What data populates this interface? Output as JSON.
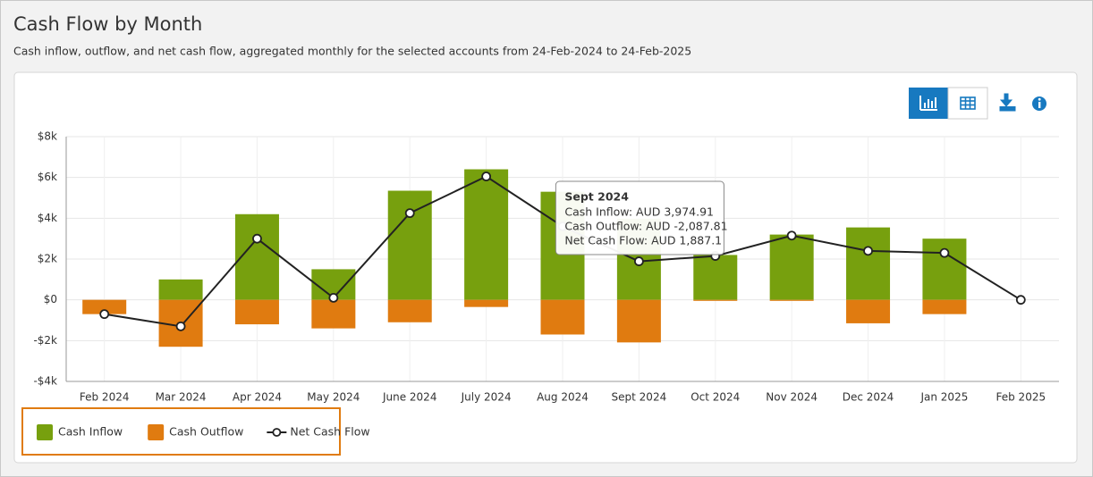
{
  "chart_data": {
    "type": "bar",
    "title": "Cash Flow by Month",
    "subtitle": "Cash inflow, outflow, and net cash flow, aggregated monthly for the selected accounts from 24-Feb-2024 to 24-Feb-2025",
    "categories": [
      "Feb 2024",
      "Mar 2024",
      "Apr 2024",
      "May 2024",
      "June 2024",
      "July 2024",
      "Aug 2024",
      "Sept 2024",
      "Oct 2024",
      "Nov 2024",
      "Dec 2024",
      "Jan 2025",
      "Feb 2025"
    ],
    "series": [
      {
        "name": "Cash Inflow",
        "type": "bar",
        "color": "#77a00e",
        "values": [
          0,
          1000,
          4200,
          1500,
          5350,
          6400,
          5300,
          3974.91,
          2200,
          3200,
          3550,
          3000,
          0
        ]
      },
      {
        "name": "Cash Outflow",
        "type": "bar",
        "color": "#e07b10",
        "values": [
          -700,
          -2300,
          -1200,
          -1400,
          -1100,
          -350,
          -1700,
          -2087.81,
          -50,
          -50,
          -1150,
          -700,
          0
        ]
      },
      {
        "name": "Net Cash Flow",
        "type": "line",
        "color": "#222222",
        "values": [
          -700,
          -1300,
          3000,
          100,
          4250,
          6050,
          3600,
          1887.1,
          2150,
          3150,
          2400,
          2300,
          0
        ]
      }
    ],
    "ylim": [
      -4000,
      8000
    ],
    "yticks": [
      {
        "value": -4000,
        "label": "-$4k"
      },
      {
        "value": -2000,
        "label": "-$2k"
      },
      {
        "value": 0,
        "label": "$0"
      },
      {
        "value": 2000,
        "label": "$2k"
      },
      {
        "value": 4000,
        "label": "$4k"
      },
      {
        "value": 6000,
        "label": "$6k"
      },
      {
        "value": 8000,
        "label": "$8k"
      }
    ],
    "grid": true,
    "legend": "bottom-left",
    "tooltip": {
      "category": 7,
      "title": "Sept 2024",
      "lines": [
        "Cash Inflow: AUD 3,974.91",
        "Cash Outflow: AUD -2,087.81",
        "Net Cash Flow: AUD 1,887.1"
      ]
    }
  }
}
